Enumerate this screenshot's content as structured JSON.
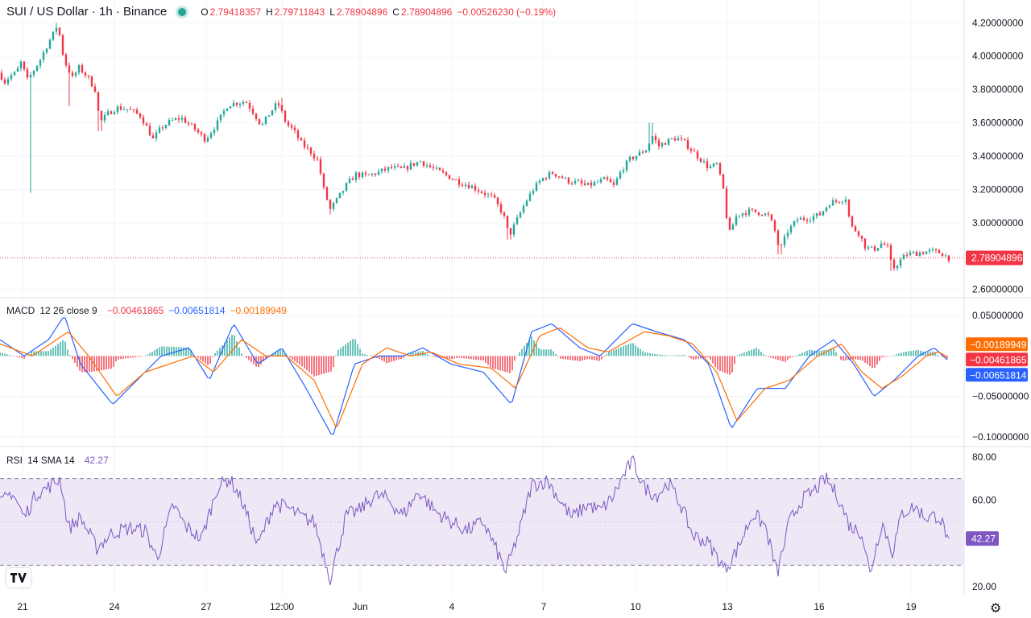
{
  "header": {
    "symbol_title": "SUI / US Dollar · 1h · Binance",
    "status_color": "#26a69a",
    "ohlc": {
      "o_label": "O",
      "o_value": "2.79418357",
      "h_label": "H",
      "h_value": "2.79711843",
      "l_label": "L",
      "l_value": "2.78904896",
      "c_label": "C",
      "c_value": "2.78904896",
      "change": "−0.00526230 (−0.19%)"
    }
  },
  "macd_legend": {
    "name": "MACD",
    "params": "12 26 close 9",
    "hist": "−0.00461865",
    "macd": "−0.00651814",
    "signal": "−0.00189949"
  },
  "rsi_legend": {
    "name": "RSI",
    "params": "14 SMA 14",
    "value": "42.27"
  },
  "colors": {
    "up": "#26a69a",
    "down": "#f23645",
    "macd": "#2962ff",
    "signal": "#ff6d00",
    "rsi": "#7e57c2",
    "rsi_band": "#ede7f6",
    "grid": "#f0f3fa"
  },
  "chart_data": [
    {
      "type": "candlestick",
      "title": "SUI / US Dollar · 1h · Binance",
      "y_ticks": [
        "4.20000000",
        "4.00000000",
        "3.80000000",
        "3.60000000",
        "3.40000000",
        "3.20000000",
        "3.00000000",
        "2.60000000"
      ],
      "y_tick_values": [
        4.2,
        4.0,
        3.8,
        3.6,
        3.4,
        3.2,
        3.0,
        2.6
      ],
      "ylim": [
        2.56,
        4.24
      ],
      "x_ticks": [
        "21",
        "24",
        "27",
        "12:00",
        "Jun",
        "4",
        "7",
        "10",
        "13",
        "16",
        "19"
      ],
      "last_price": 2.78904896,
      "last_price_label": "2.78904896",
      "anchors": [
        [
          0,
          3.9
        ],
        [
          5,
          3.84
        ],
        [
          12,
          3.88
        ],
        [
          20,
          3.9
        ],
        [
          27,
          3.97
        ],
        [
          33,
          3.85
        ],
        [
          40,
          3.9
        ],
        [
          50,
          3.98
        ],
        [
          60,
          4.08
        ],
        [
          68,
          4.15
        ],
        [
          72,
          4.2
        ],
        [
          76,
          4.05
        ],
        [
          82,
          3.95
        ],
        [
          90,
          3.87
        ],
        [
          98,
          3.93
        ],
        [
          108,
          3.88
        ],
        [
          118,
          3.8
        ],
        [
          124,
          3.6
        ],
        [
          135,
          3.66
        ],
        [
          145,
          3.69
        ],
        [
          160,
          3.68
        ],
        [
          175,
          3.64
        ],
        [
          190,
          3.5
        ],
        [
          200,
          3.57
        ],
        [
          212,
          3.61
        ],
        [
          225,
          3.63
        ],
        [
          240,
          3.57
        ],
        [
          255,
          3.5
        ],
        [
          270,
          3.6
        ],
        [
          283,
          3.71
        ],
        [
          295,
          3.72
        ],
        [
          305,
          3.73
        ],
        [
          315,
          3.66
        ],
        [
          325,
          3.58
        ],
        [
          335,
          3.66
        ],
        [
          345,
          3.72
        ],
        [
          355,
          3.6
        ],
        [
          365,
          3.55
        ],
        [
          375,
          3.47
        ],
        [
          385,
          3.43
        ],
        [
          395,
          3.37
        ],
        [
          402,
          3.2
        ],
        [
          410,
          3.08
        ],
        [
          420,
          3.15
        ],
        [
          432,
          3.24
        ],
        [
          442,
          3.29
        ],
        [
          455,
          3.28
        ],
        [
          468,
          3.3
        ],
        [
          485,
          3.33
        ],
        [
          500,
          3.32
        ],
        [
          512,
          3.35
        ],
        [
          522,
          3.37
        ],
        [
          535,
          3.33
        ],
        [
          548,
          3.3
        ],
        [
          560,
          3.27
        ],
        [
          572,
          3.24
        ],
        [
          585,
          3.22
        ],
        [
          600,
          3.18
        ],
        [
          612,
          3.15
        ],
        [
          625,
          3.05
        ],
        [
          632,
          2.92
        ],
        [
          642,
          3.02
        ],
        [
          652,
          3.12
        ],
        [
          662,
          3.2
        ],
        [
          672,
          3.26
        ],
        [
          685,
          3.3
        ],
        [
          695,
          3.28
        ],
        [
          705,
          3.25
        ],
        [
          718,
          3.24
        ],
        [
          728,
          3.22
        ],
        [
          740,
          3.24
        ],
        [
          752,
          3.26
        ],
        [
          762,
          3.22
        ],
        [
          772,
          3.32
        ],
        [
          782,
          3.38
        ],
        [
          792,
          3.41
        ],
        [
          802,
          3.44
        ],
        [
          810,
          3.52
        ],
        [
          818,
          3.46
        ],
        [
          828,
          3.49
        ],
        [
          840,
          3.51
        ],
        [
          850,
          3.48
        ],
        [
          860,
          3.43
        ],
        [
          870,
          3.38
        ],
        [
          880,
          3.33
        ],
        [
          890,
          3.35
        ],
        [
          898,
          3.2
        ],
        [
          903,
          3.0
        ],
        [
          906,
          2.94
        ],
        [
          915,
          3.05
        ],
        [
          930,
          3.07
        ],
        [
          945,
          3.06
        ],
        [
          955,
          3.04
        ],
        [
          962,
          2.95
        ],
        [
          968,
          2.83
        ],
        [
          978,
          2.95
        ],
        [
          990,
          3.02
        ],
        [
          1005,
          3.03
        ],
        [
          1018,
          3.05
        ],
        [
          1030,
          3.12
        ],
        [
          1040,
          3.13
        ],
        [
          1050,
          3.15
        ],
        [
          1056,
          2.98
        ],
        [
          1066,
          2.94
        ],
        [
          1075,
          2.85
        ],
        [
          1085,
          2.84
        ],
        [
          1095,
          2.88
        ],
        [
          1102,
          2.85
        ],
        [
          1108,
          2.72
        ],
        [
          1115,
          2.76
        ],
        [
          1125,
          2.81
        ],
        [
          1140,
          2.82
        ],
        [
          1155,
          2.83
        ],
        [
          1168,
          2.82
        ],
        [
          1178,
          2.789
        ]
      ],
      "wick_extremes": [
        [
          39,
          3.18
        ],
        [
          70,
          4.2
        ],
        [
          86,
          3.7
        ],
        [
          124,
          3.55
        ],
        [
          350,
          3.75
        ],
        [
          410,
          3.05
        ],
        [
          632,
          2.9
        ],
        [
          808,
          3.6
        ],
        [
          968,
          2.81
        ],
        [
          1108,
          2.71
        ]
      ]
    },
    {
      "type": "macd",
      "name": "MACD 12 26 close 9",
      "y_ticks": [
        "0.05000000",
        "−0.05000000",
        "−0.10000000"
      ],
      "y_tick_values": [
        0.05,
        -0.05,
        -0.1
      ],
      "ylim": [
        -0.11,
        0.07
      ],
      "last": {
        "hist": -0.00461865,
        "macd": -0.00651814,
        "signal": -0.00189949
      },
      "last_labels": {
        "hist": "−0.00461865",
        "macd": "−0.00651814",
        "signal": "−0.00189949"
      },
      "macd_anchors": [
        [
          0,
          0.02
        ],
        [
          30,
          0.0
        ],
        [
          60,
          0.02
        ],
        [
          80,
          0.05
        ],
        [
          100,
          -0.01
        ],
        [
          140,
          -0.06
        ],
        [
          170,
          -0.03
        ],
        [
          200,
          0.0
        ],
        [
          235,
          0.01
        ],
        [
          260,
          -0.03
        ],
        [
          290,
          0.04
        ],
        [
          320,
          -0.01
        ],
        [
          350,
          0.01
        ],
        [
          380,
          -0.04
        ],
        [
          413,
          -0.1
        ],
        [
          440,
          -0.01
        ],
        [
          470,
          0.0
        ],
        [
          500,
          0.0
        ],
        [
          525,
          0.01
        ],
        [
          560,
          -0.01
        ],
        [
          600,
          -0.02
        ],
        [
          635,
          -0.06
        ],
        [
          660,
          0.03
        ],
        [
          685,
          0.04
        ],
        [
          720,
          0.01
        ],
        [
          745,
          0.0
        ],
        [
          785,
          0.04
        ],
        [
          815,
          0.03
        ],
        [
          850,
          0.02
        ],
        [
          880,
          -0.01
        ],
        [
          908,
          -0.09
        ],
        [
          940,
          -0.04
        ],
        [
          975,
          -0.04
        ],
        [
          1005,
          0.0
        ],
        [
          1035,
          0.02
        ],
        [
          1060,
          -0.01
        ],
        [
          1085,
          -0.05
        ],
        [
          1110,
          -0.03
        ],
        [
          1140,
          0.0
        ],
        [
          1160,
          0.01
        ],
        [
          1178,
          -0.0065
        ]
      ],
      "signal_anchors": [
        [
          0,
          0.015
        ],
        [
          40,
          0.0
        ],
        [
          85,
          0.03
        ],
        [
          110,
          0.0
        ],
        [
          145,
          -0.05
        ],
        [
          180,
          -0.02
        ],
        [
          210,
          -0.01
        ],
        [
          240,
          0.0
        ],
        [
          265,
          -0.02
        ],
        [
          300,
          0.02
        ],
        [
          330,
          0.0
        ],
        [
          355,
          0.0
        ],
        [
          390,
          -0.03
        ],
        [
          418,
          -0.09
        ],
        [
          450,
          -0.01
        ],
        [
          480,
          0.01
        ],
        [
          510,
          0.0
        ],
        [
          535,
          0.005
        ],
        [
          570,
          -0.01
        ],
        [
          610,
          -0.015
        ],
        [
          640,
          -0.04
        ],
        [
          670,
          0.025
        ],
        [
          695,
          0.035
        ],
        [
          730,
          0.01
        ],
        [
          755,
          0.005
        ],
        [
          800,
          0.03
        ],
        [
          830,
          0.025
        ],
        [
          860,
          0.015
        ],
        [
          890,
          -0.02
        ],
        [
          915,
          -0.08
        ],
        [
          950,
          -0.04
        ],
        [
          980,
          -0.03
        ],
        [
          1015,
          0.0
        ],
        [
          1045,
          0.015
        ],
        [
          1070,
          -0.02
        ],
        [
          1095,
          -0.04
        ],
        [
          1120,
          -0.025
        ],
        [
          1150,
          0.0
        ],
        [
          1165,
          0.005
        ],
        [
          1178,
          -0.0019
        ]
      ]
    },
    {
      "type": "rsi",
      "name": "RSI 14 SMA 14",
      "y_ticks": [
        "80.00",
        "60.00",
        "20.00"
      ],
      "y_tick_values": [
        80,
        60,
        20
      ],
      "ylim": [
        16,
        84
      ],
      "band": [
        30,
        70
      ],
      "last": 42.27,
      "last_label": "42.27",
      "anchors": [
        [
          0,
          58
        ],
        [
          15,
          64
        ],
        [
          30,
          52
        ],
        [
          45,
          63
        ],
        [
          60,
          66
        ],
        [
          75,
          70
        ],
        [
          85,
          47
        ],
        [
          100,
          52
        ],
        [
          120,
          38
        ],
        [
          140,
          45
        ],
        [
          160,
          47
        ],
        [
          180,
          46
        ],
        [
          195,
          33
        ],
        [
          215,
          58
        ],
        [
          230,
          48
        ],
        [
          250,
          42
        ],
        [
          270,
          66
        ],
        [
          285,
          70
        ],
        [
          300,
          60
        ],
        [
          320,
          39
        ],
        [
          340,
          58
        ],
        [
          355,
          57
        ],
        [
          375,
          52
        ],
        [
          390,
          50
        ],
        [
          410,
          24
        ],
        [
          430,
          53
        ],
        [
          445,
          55
        ],
        [
          465,
          62
        ],
        [
          480,
          61
        ],
        [
          500,
          53
        ],
        [
          520,
          64
        ],
        [
          540,
          55
        ],
        [
          560,
          50
        ],
        [
          580,
          46
        ],
        [
          600,
          50
        ],
        [
          615,
          38
        ],
        [
          628,
          27
        ],
        [
          645,
          46
        ],
        [
          660,
          67
        ],
        [
          680,
          69
        ],
        [
          695,
          60
        ],
        [
          710,
          52
        ],
        [
          730,
          58
        ],
        [
          745,
          55
        ],
        [
          760,
          61
        ],
        [
          775,
          72
        ],
        [
          785,
          78
        ],
        [
          800,
          66
        ],
        [
          815,
          62
        ],
        [
          830,
          68
        ],
        [
          845,
          58
        ],
        [
          860,
          44
        ],
        [
          880,
          40
        ],
        [
          900,
          28
        ],
        [
          915,
          37
        ],
        [
          935,
          54
        ],
        [
          950,
          48
        ],
        [
          965,
          26
        ],
        [
          980,
          50
        ],
        [
          995,
          60
        ],
        [
          1010,
          64
        ],
        [
          1025,
          70
        ],
        [
          1040,
          62
        ],
        [
          1055,
          48
        ],
        [
          1070,
          45
        ],
        [
          1080,
          26
        ],
        [
          1095,
          50
        ],
        [
          1108,
          36
        ],
        [
          1120,
          54
        ],
        [
          1135,
          57
        ],
        [
          1150,
          52
        ],
        [
          1165,
          53
        ],
        [
          1178,
          42.27
        ]
      ]
    }
  ]
}
